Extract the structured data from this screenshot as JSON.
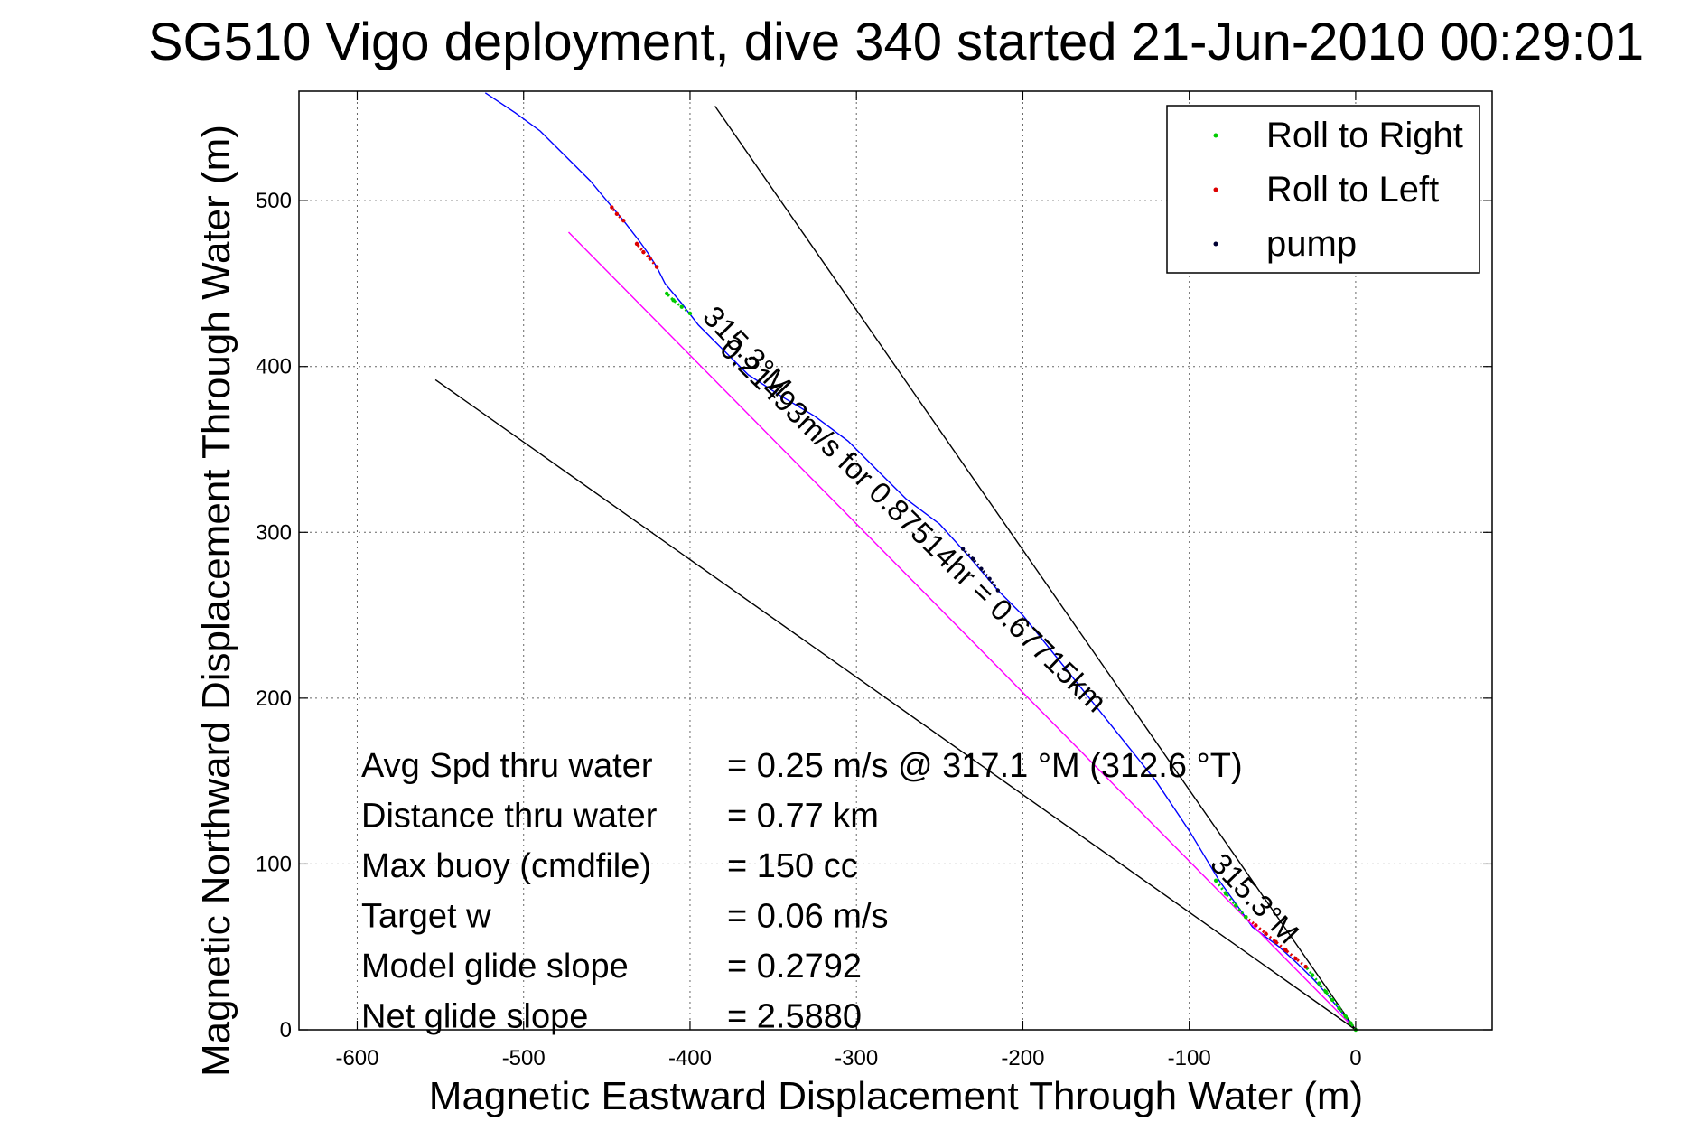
{
  "chart_data": {
    "type": "line",
    "title": "SG510 Vigo deployment, dive 340 started 21-Jun-2010 00:29:01",
    "xlabel": "Magnetic Eastward Displacement Through Water (m)",
    "ylabel": "Magnetic Northward Displacement Through Water (m)",
    "xlim": [
      -635,
      82
    ],
    "ylim": [
      0,
      566
    ],
    "xticks": [
      -600,
      -500,
      -400,
      -300,
      -200,
      -100,
      0
    ],
    "yticks": [
      0,
      100,
      200,
      300,
      400,
      500
    ],
    "grid": true,
    "legend": {
      "position": "top-right",
      "entries": [
        {
          "label": "Roll to Right",
          "color": "#00cc00"
        },
        {
          "label": "Roll to Left",
          "color": "#dd0000"
        },
        {
          "label": "pump",
          "color": "#000033"
        }
      ]
    },
    "series": [
      {
        "color": "#0000ff",
        "x": [
          0,
          -8,
          -16,
          -25,
          -35,
          -46,
          -62,
          -82,
          -100,
          -120,
          -140,
          -160,
          -180,
          -200,
          -215,
          -232,
          -250,
          -270,
          -290,
          -305,
          -325,
          -345,
          -365,
          -380,
          -395,
          -405,
          -415,
          -420,
          -425,
          -430,
          -440,
          -450,
          -460,
          -475,
          -490,
          -505,
          -523
        ],
        "y": [
          0,
          10,
          20,
          30,
          40,
          50,
          62,
          90,
          120,
          150,
          175,
          200,
          225,
          250,
          265,
          285,
          305,
          320,
          340,
          355,
          370,
          382,
          395,
          410,
          425,
          438,
          450,
          460,
          468,
          475,
          488,
          500,
          512,
          527,
          542,
          553,
          565
        ]
      },
      {
        "color": "#ff00ff",
        "x": [
          0,
          -473
        ],
        "y": [
          0,
          481
        ]
      },
      {
        "color": "#000000",
        "x": [
          0,
          -385
        ],
        "y": [
          0,
          557
        ]
      },
      {
        "color": "#000000",
        "x": [
          0,
          -553
        ],
        "y": [
          0,
          392
        ]
      },
      {
        "color": "#00cc00",
        "x": [
          0,
          -3,
          -6,
          -10,
          -14,
          -18,
          -22,
          -26,
          -30
        ],
        "y": [
          0,
          4,
          8,
          13,
          18,
          23,
          28,
          33,
          38
        ]
      },
      {
        "color": "#dd0000",
        "x": [
          -30,
          -36,
          -42,
          -48,
          -54,
          -60,
          -66
        ],
        "y": [
          38,
          43,
          48,
          53,
          58,
          63,
          68
        ]
      },
      {
        "color": "#00cc00",
        "x": [
          -66,
          -72,
          -78,
          -84
        ],
        "y": [
          68,
          75,
          82,
          90
        ]
      },
      {
        "color": "#000033",
        "x": [
          -215,
          -220,
          -225,
          -230,
          -236
        ],
        "y": [
          265,
          272,
          278,
          284,
          290
        ]
      },
      {
        "color": "#dd0000",
        "x": [
          -420,
          -424,
          -428,
          -432
        ],
        "y": [
          460,
          465,
          469,
          474
        ]
      },
      {
        "color": "#dd0000",
        "x": [
          -440,
          -444,
          -447
        ],
        "y": [
          488,
          492,
          496
        ]
      },
      {
        "color": "#00cc00",
        "x": [
          -400,
          -405,
          -410,
          -414
        ],
        "y": [
          432,
          436,
          440,
          444
        ]
      }
    ],
    "annotations": [
      {
        "text": "315.3°M",
        "x": -370,
        "y": 405,
        "angle": 46
      },
      {
        "text": "0.21493m/s for 0.87514hr = 0.67715km",
        "x": -270,
        "y": 300,
        "angle": 44
      },
      {
        "text": "315.3°M",
        "x": -65,
        "y": 75,
        "angle": 46
      }
    ],
    "stats": [
      {
        "label": "Avg Spd thru water",
        "value": "=  0.25 m/s @ 317.1 °M (312.6 °T)"
      },
      {
        "label": "Distance thru water",
        "value": "=  0.77 km"
      },
      {
        "label": "Max buoy (cmdfile)",
        "value": "= 150 cc"
      },
      {
        "label": "Target w",
        "value": "= 0.06 m/s"
      },
      {
        "label": "Model glide slope",
        "value": "= 0.2792"
      },
      {
        "label": "Net glide slope",
        "value": "= 2.5880"
      }
    ]
  }
}
